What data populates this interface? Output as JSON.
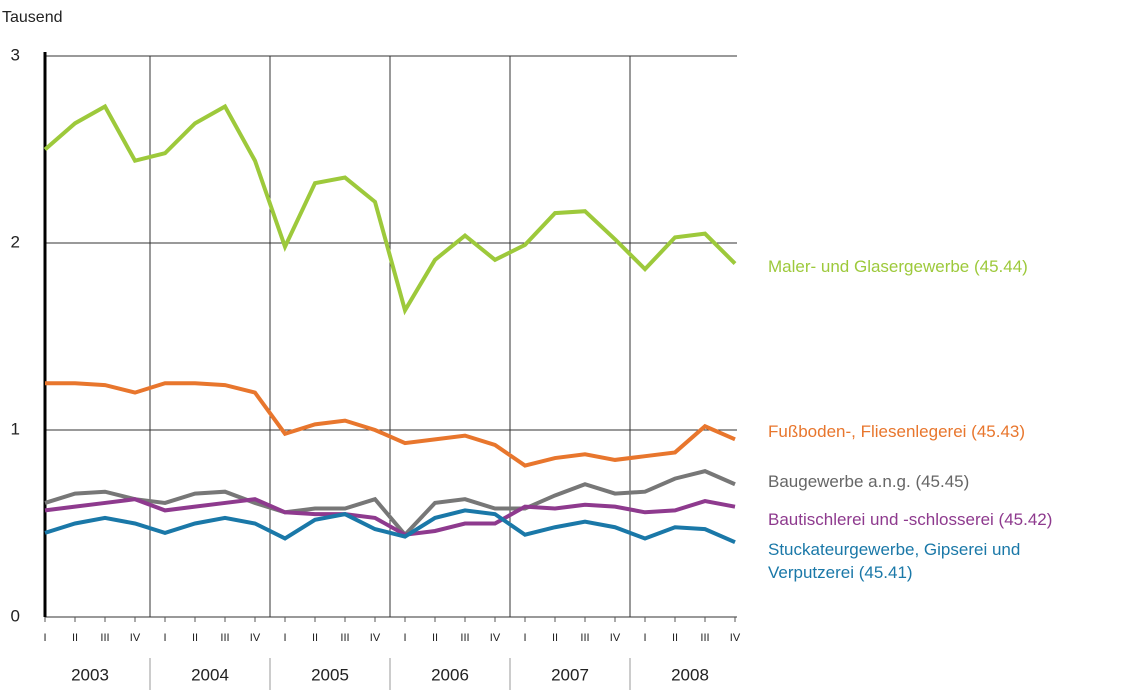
{
  "chart_data": {
    "type": "line",
    "ylabel": "Tausend",
    "categories": [
      "I",
      "II",
      "III",
      "IV",
      "I",
      "II",
      "III",
      "IV",
      "I",
      "II",
      "III",
      "IV",
      "I",
      "II",
      "III",
      "IV",
      "I",
      "II",
      "III",
      "IV",
      "I",
      "II",
      "III",
      "IV"
    ],
    "years": [
      "2003",
      "2004",
      "2005",
      "2006",
      "2007",
      "2008"
    ],
    "ylim": [
      0,
      3
    ],
    "yticks": [
      0,
      1,
      2,
      3
    ],
    "grid": true,
    "series": [
      {
        "name": "Maler- und Glasergewerbe (45.44)",
        "color": "#9dc93b",
        "values": [
          2.5,
          2.64,
          2.73,
          2.44,
          2.48,
          2.64,
          2.73,
          2.44,
          1.98,
          2.32,
          2.35,
          2.22,
          1.64,
          1.91,
          2.04,
          1.91,
          1.99,
          2.16,
          2.17,
          2.02,
          1.86,
          2.03,
          2.05,
          1.89
        ]
      },
      {
        "name": "Fußboden-, Fliesenlegerei (45.43)",
        "color": "#e8762d",
        "values": [
          1.25,
          1.25,
          1.24,
          1.2,
          1.25,
          1.25,
          1.24,
          1.2,
          0.98,
          1.03,
          1.05,
          1.0,
          0.93,
          0.95,
          0.97,
          0.92,
          0.81,
          0.85,
          0.87,
          0.84,
          0.86,
          0.88,
          1.02,
          0.95
        ]
      },
      {
        "name": "Baugewerbe a.n.g. (45.45)",
        "color": "#777777",
        "values": [
          0.61,
          0.66,
          0.67,
          0.63,
          0.61,
          0.66,
          0.67,
          0.61,
          0.56,
          0.58,
          0.58,
          0.63,
          0.44,
          0.61,
          0.63,
          0.58,
          0.58,
          0.65,
          0.71,
          0.66,
          0.67,
          0.74,
          0.78,
          0.71
        ]
      },
      {
        "name": "Bautischlerei und -schlosserei (45.42)",
        "color": "#8e3a8e",
        "values": [
          0.57,
          0.59,
          0.61,
          0.63,
          0.57,
          0.59,
          0.61,
          0.63,
          0.56,
          0.55,
          0.55,
          0.53,
          0.44,
          0.46,
          0.5,
          0.5,
          0.59,
          0.58,
          0.6,
          0.59,
          0.56,
          0.57,
          0.62,
          0.59
        ]
      },
      {
        "name": "Stuckateurgewerbe, Gipserei und Verputzerei (45.41)",
        "color": "#1a78a8",
        "values": [
          0.45,
          0.5,
          0.53,
          0.5,
          0.45,
          0.5,
          0.53,
          0.5,
          0.42,
          0.52,
          0.55,
          0.47,
          0.43,
          0.53,
          0.57,
          0.55,
          0.44,
          0.48,
          0.51,
          0.48,
          0.42,
          0.48,
          0.47,
          0.4
        ]
      }
    ]
  }
}
